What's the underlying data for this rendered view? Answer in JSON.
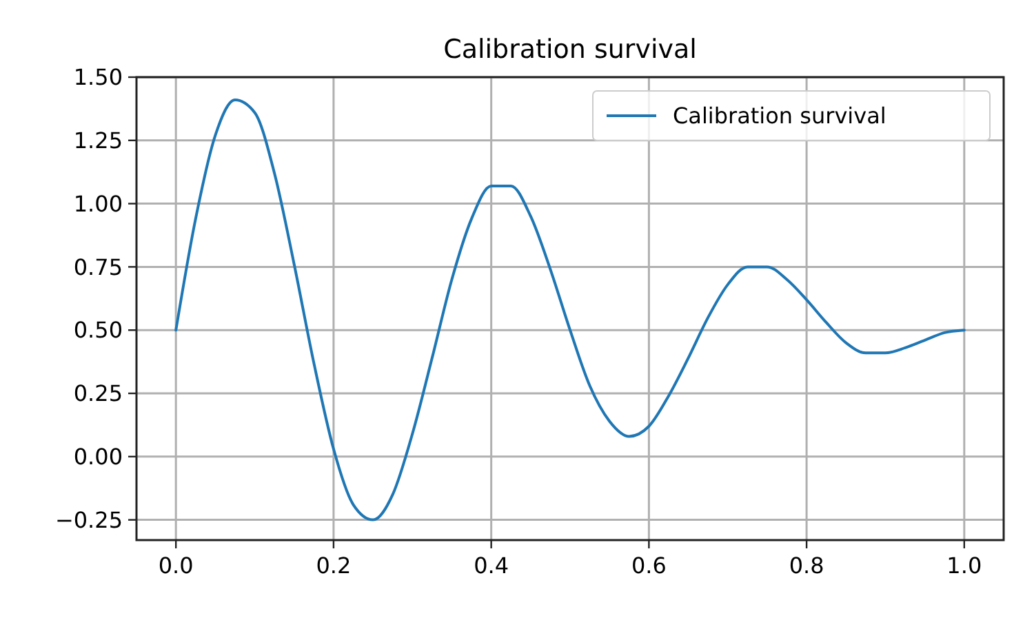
{
  "chart_data": {
    "type": "line",
    "title": "Calibration survival",
    "x": [
      0,
      0.025,
      0.05,
      0.075,
      0.1,
      0.125,
      0.15,
      0.175,
      0.2,
      0.225,
      0.25,
      0.275,
      0.3,
      0.325,
      0.35,
      0.375,
      0.4,
      0.425,
      0.45,
      0.475,
      0.5,
      0.525,
      0.55,
      0.575,
      0.6,
      0.625,
      0.65,
      0.675,
      0.7,
      0.725,
      0.75,
      0.775,
      0.8,
      0.825,
      0.85,
      0.875,
      0.9,
      0.925,
      0.95,
      0.975,
      1
    ],
    "series": [
      {
        "name": "Calibration survival",
        "color": "#1f77b4",
        "values": [
          0.5,
          0.94,
          1.27,
          1.41,
          1.36,
          1.12,
          0.76,
          0.37,
          0.03,
          -0.19,
          -0.25,
          -0.15,
          0.09,
          0.39,
          0.7,
          0.94,
          1.07,
          1.07,
          0.95,
          0.74,
          0.5,
          0.28,
          0.14,
          0.08,
          0.12,
          0.24,
          0.39,
          0.55,
          0.68,
          0.75,
          0.75,
          0.7,
          0.62,
          0.53,
          0.45,
          0.41,
          0.41,
          0.43,
          0.46,
          0.49,
          0.5
        ]
      }
    ],
    "xlim": [
      -0.05,
      1.05
    ],
    "xticks": [
      {
        "value": 0,
        "label": "0.0"
      },
      {
        "value": 0.2,
        "label": "0.2"
      },
      {
        "value": 0.4,
        "label": "0.4"
      },
      {
        "value": 0.6,
        "label": "0.6"
      },
      {
        "value": 0.8,
        "label": "0.8"
      },
      {
        "value": 1,
        "label": "1.0"
      }
    ],
    "ylim": [
      -0.33,
      1.5
    ],
    "yticks": [
      {
        "value": -0.25,
        "label": "−0.25"
      },
      {
        "value": 0,
        "label": "0.00"
      },
      {
        "value": 0.25,
        "label": "0.25"
      },
      {
        "value": 0.5,
        "label": "0.50"
      },
      {
        "value": 0.75,
        "label": "0.75"
      },
      {
        "value": 1,
        "label": "1.00"
      },
      {
        "value": 1.25,
        "label": "1.25"
      },
      {
        "value": 1.5,
        "label": "1.50"
      }
    ],
    "grid": true,
    "legend": "top right",
    "marker": "none",
    "line_style": "solid"
  }
}
